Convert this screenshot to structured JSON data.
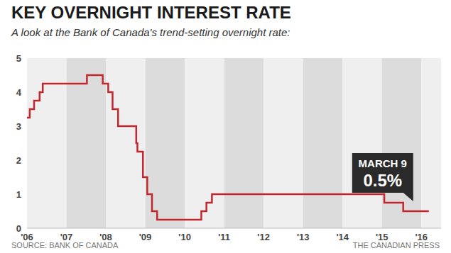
{
  "chart_data": {
    "type": "line",
    "title": "KEY OVERNIGHT INTEREST RATE",
    "subtitle": "A look at the Bank of Canada's trend-setting overnight rate:",
    "source": "SOURCE: BANK OF CANADA",
    "credit": "THE CANADIAN PRESS",
    "x": [
      2006.0,
      2006.07,
      2006.18,
      2006.32,
      2006.4,
      2007.52,
      2007.92,
      2008.06,
      2008.17,
      2008.31,
      2008.77,
      2008.8,
      2008.94,
      2009.05,
      2009.17,
      2009.3,
      2010.42,
      2010.55,
      2010.69,
      2015.06,
      2015.54,
      2016.19
    ],
    "values": [
      3.25,
      3.5,
      3.75,
      4.0,
      4.25,
      4.5,
      4.25,
      4.0,
      3.5,
      3.0,
      2.5,
      2.25,
      1.5,
      1.0,
      0.5,
      0.25,
      0.5,
      0.75,
      1.0,
      0.75,
      0.5,
      0.5
    ],
    "color": "#c4262e",
    "line_style": "step",
    "xlim": [
      2006,
      2016.5
    ],
    "xticks": [
      {
        "value": 2006,
        "label": "'06"
      },
      {
        "value": 2007,
        "label": "'07"
      },
      {
        "value": 2008,
        "label": "'08"
      },
      {
        "value": 2009,
        "label": "'09"
      },
      {
        "value": 2010,
        "label": "'10"
      },
      {
        "value": 2011,
        "label": "'11"
      },
      {
        "value": 2012,
        "label": "'12"
      },
      {
        "value": 2013,
        "label": "'13"
      },
      {
        "value": 2014,
        "label": "'14"
      },
      {
        "value": 2015,
        "label": "'15"
      },
      {
        "value": 2016,
        "label": "'16"
      }
    ],
    "ylim": [
      0,
      5
    ],
    "yticks": [
      0,
      1,
      2,
      3,
      4,
      5
    ],
    "grid": true,
    "annotation": {
      "label": "MARCH 9",
      "x": 2016.19,
      "y": 0.5,
      "value_label": "0.5%"
    }
  }
}
